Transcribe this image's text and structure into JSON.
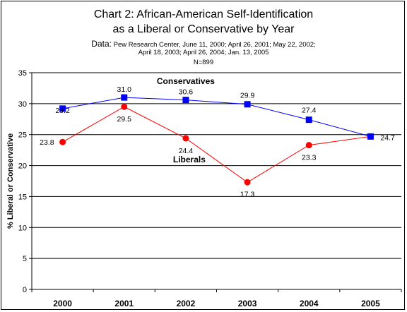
{
  "titles": {
    "line1": "Chart 2: African-American Self-Identification",
    "line2": "as a Liberal or Conservative by Year",
    "source_prefix": "Data:",
    "source_line1": " Pew Research Center, June 11, 2000; April 26, 2001; May 22, 2002;",
    "source_line2": "April 18, 2003; April 26, 2004; Jan. 13, 2005",
    "sample": "N=899"
  },
  "chart_data": {
    "type": "line",
    "categories": [
      "2000",
      "2001",
      "2002",
      "2003",
      "2004",
      "2005"
    ],
    "series": [
      {
        "name": "Conservatives",
        "values": [
          29.2,
          31.0,
          30.6,
          29.9,
          27.4,
          24.7
        ],
        "color": "#0000ff",
        "marker": "square"
      },
      {
        "name": "Liberals",
        "values": [
          23.8,
          29.5,
          24.4,
          17.3,
          23.3,
          24.7
        ],
        "color": "#ff0000",
        "marker": "circle"
      }
    ],
    "ylabel": "% Liberal or Conservative",
    "xlabel": "",
    "ylim": [
      0,
      35
    ],
    "yticks": [
      0,
      5,
      10,
      15,
      20,
      25,
      30,
      35
    ],
    "grid": true,
    "series_labels": [
      "Conservatives",
      "Liberals"
    ],
    "data_labels": {
      "Conservatives": [
        "29.2",
        "31.0",
        "30.6",
        "29.9",
        "27.4",
        ""
      ],
      "Liberals": [
        "23.8",
        "29.5",
        "24.4",
        "17.3",
        "23.3",
        "24.7"
      ]
    }
  }
}
